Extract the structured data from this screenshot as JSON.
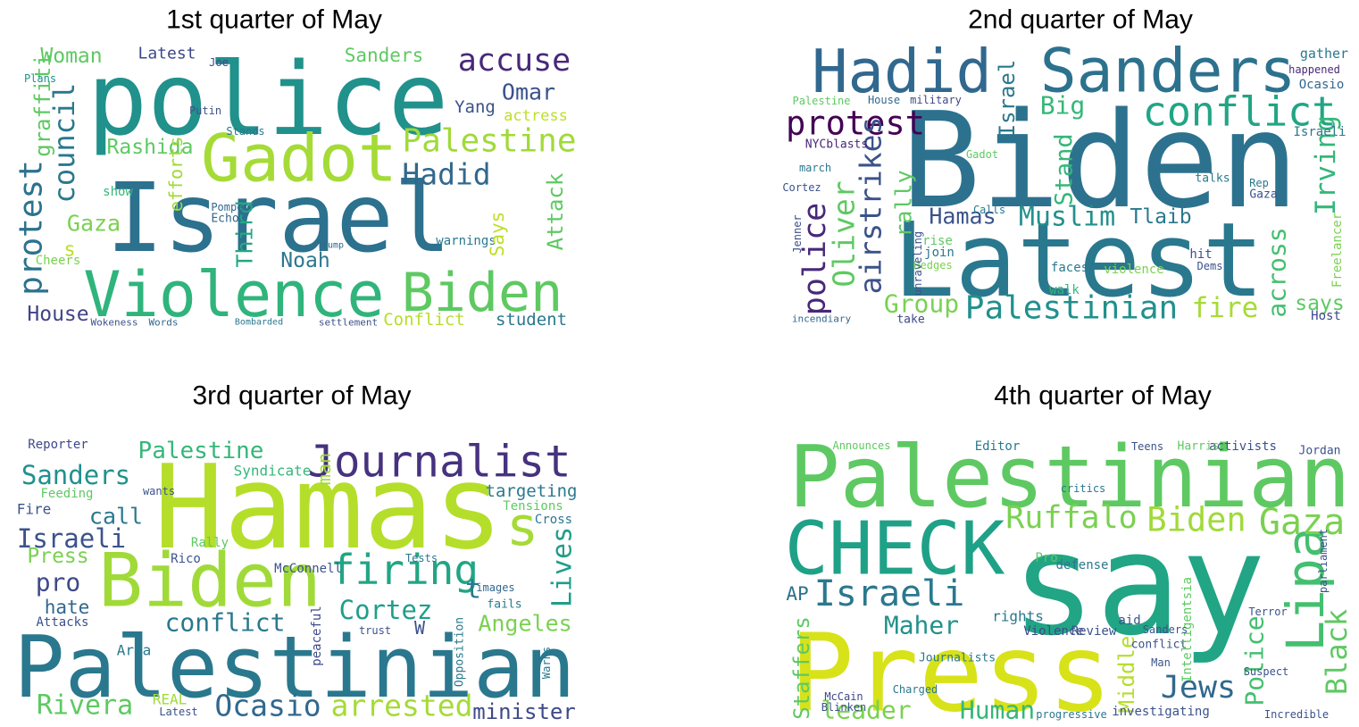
{
  "chart_data": [
    {
      "type": "wordcloud",
      "title": "1st quarter of May",
      "words": [
        "Israel",
        "police",
        "Gadot",
        "Violence",
        "Biden",
        "Palestine",
        "accuse",
        "Omar",
        "Hadid",
        "council",
        "protest",
        "graffiti",
        "Woman",
        "Latest",
        "Sanders",
        "Rashida",
        "Gaza",
        "House",
        "Noah",
        "Yang",
        "actress",
        "student",
        "Conflict",
        "warnings",
        "Attack",
        "Says",
        "efforts",
        "Third",
        "Cheers",
        "show",
        "Echo",
        "Putin",
        "Pompeo",
        "Joe",
        "Stands",
        "Wokeness",
        "Words",
        "Bombarded",
        "settlement",
        "Trump",
        "Plans",
        "s"
      ],
      "weights": [
        107,
        112,
        73,
        70,
        60,
        36,
        35,
        25,
        33,
        32,
        36,
        24,
        23,
        18,
        21,
        23,
        25,
        23,
        23,
        19,
        17,
        19,
        19,
        14,
        24,
        21,
        20,
        25,
        14,
        14,
        13,
        12,
        12,
        12,
        12,
        11,
        11,
        10,
        11,
        10,
        12,
        22
      ],
      "colors": [
        "#2c718e",
        "#21918c",
        "#a5db36",
        "#2fb47c",
        "#5ec962",
        "#a0da39",
        "#482878",
        "#3b528b",
        "#31688e",
        "#2a788e",
        "#2c728e",
        "#5ec962",
        "#5ec962",
        "#3e4989",
        "#5ec962",
        "#5ec962",
        "#7ad151",
        "#414487",
        "#2a788e",
        "#3b528b",
        "#bddf26",
        "#2a788e",
        "#b5de2b",
        "#2a788e",
        "#5ec962",
        "#bddf26",
        "#a0da39",
        "#22a884",
        "#7ad151",
        "#35b779",
        "#31688e",
        "#3b528b",
        "#31688e",
        "#3e4989",
        "#2a788e",
        "#3b528b",
        "#31688e",
        "#2a788e",
        "#3b528b",
        "#31688e",
        "#21918c",
        "#bddf26"
      ]
    },
    {
      "type": "wordcloud",
      "title": "2nd quarter of May",
      "words": [
        "Biden",
        "Latest",
        "Hadid",
        "Sanders",
        "conflict",
        "protest",
        "Israel",
        "Big",
        "Irving",
        "airstrikes",
        "police",
        "Oliver",
        "rally",
        "Hamas",
        "Muslim",
        "Tlaib",
        "Group",
        "Palestinian",
        "fire",
        "across",
        "says",
        "Stand",
        "gather",
        "happened",
        "Ocasio",
        "Israeli",
        "Gaza",
        "talks",
        "Rep",
        "Freelancer",
        "Host",
        "violence",
        "faces",
        "walk",
        "hit",
        "Dems",
        "join",
        "rise",
        "Hedges",
        "unraveling",
        "take",
        "Cortez",
        "march",
        "NYCblasts",
        "Palestine",
        "House",
        "military",
        "Gadot",
        "Calls",
        "incendiary",
        "Jenner"
      ],
      "weights": [
        148,
        115,
        67,
        68,
        45,
        37,
        24,
        28,
        31,
        33,
        35,
        33,
        25,
        25,
        30,
        23,
        28,
        36,
        31,
        28,
        23,
        27,
        15,
        12,
        14,
        14,
        13,
        13,
        12,
        14,
        14,
        14,
        14,
        14,
        14,
        12,
        14,
        14,
        12,
        12,
        13,
        12,
        12,
        13,
        12,
        12,
        12,
        12,
        12,
        11,
        12
      ],
      "colors": [
        "#2c728e",
        "#2a788e",
        "#31688e",
        "#2c728e",
        "#21a585",
        "#440154",
        "#2a788e",
        "#35b779",
        "#35b779",
        "#3b528b",
        "#482878",
        "#5ec962",
        "#5ec962",
        "#3b528b",
        "#21908d",
        "#2a788e",
        "#7ad151",
        "#21908d",
        "#a5db36",
        "#44bf70",
        "#5ec962",
        "#35b779",
        "#2a788e",
        "#482878",
        "#31688e",
        "#2a788e",
        "#3b528b",
        "#2a788e",
        "#2a788e",
        "#7ad151",
        "#3e4989",
        "#7ad151",
        "#2a788e",
        "#35b779",
        "#3b528b",
        "#3b528b",
        "#2a788e",
        "#5ec962",
        "#7ad151",
        "#3b528b",
        "#3e4989",
        "#3b528b",
        "#2a788e",
        "#482878",
        "#5ec962",
        "#31688e",
        "#3e4989",
        "#5ec962",
        "#2a788e",
        "#31688e",
        "#3b528b"
      ]
    },
    {
      "type": "wordcloud",
      "title": "3rd quarter of May",
      "words": [
        "Hamas",
        "s",
        "Biden",
        "Palestinian",
        "Journalist",
        "Palestine",
        "Sanders",
        "call",
        "Israeli",
        "firing",
        "Cortez",
        "conflict",
        "arrested",
        "Ocasio",
        "Rivera",
        "minister",
        "Angeles",
        "Lives",
        "targeting",
        "man",
        "Press",
        "pro",
        "hate",
        "Fire",
        "Reporter",
        "Feeding",
        "Syndicate",
        "Tensions",
        "Cross",
        "Rico",
        "McConnell",
        "Tests",
        "Rally",
        "Area",
        "images",
        "fails",
        "W",
        "t",
        "trust",
        "peaceful",
        "Opposition",
        "Warns",
        "REAL",
        "Latest",
        "Attacks",
        "wants"
      ],
      "weights": [
        130,
        60,
        83,
        95,
        49,
        26,
        29,
        25,
        29,
        46,
        29,
        28,
        33,
        33,
        30,
        24,
        25,
        30,
        19,
        20,
        23,
        28,
        21,
        16,
        14,
        14,
        16,
        14,
        14,
        14,
        14,
        12,
        14,
        16,
        12,
        13,
        20,
        30,
        12,
        14,
        13,
        12,
        16,
        12,
        14,
        12
      ],
      "colors": [
        "#b5de2b",
        "#a5db36",
        "#a0da39",
        "#2a788e",
        "#46327e",
        "#35b779",
        "#21918c",
        "#2a788e",
        "#3b528b",
        "#21a585",
        "#1f9e89",
        "#2a788e",
        "#a5db36",
        "#31688e",
        "#5ec962",
        "#3e4989",
        "#7ad151",
        "#1f9e89",
        "#2a788e",
        "#a0da39",
        "#7ad151",
        "#3e4989",
        "#31688e",
        "#3b528b",
        "#3e4989",
        "#5ec962",
        "#35b779",
        "#5ec962",
        "#2a788e",
        "#3b528b",
        "#3b528b",
        "#2a788e",
        "#5ec962",
        "#2a788e",
        "#31688e",
        "#2a788e",
        "#3b528b",
        "#2a788e",
        "#3b528b",
        "#3e4989",
        "#2a788e",
        "#2a788e",
        "#a0da39",
        "#3b528b",
        "#3b528b",
        "#3b528b"
      ]
    },
    {
      "type": "wordcloud",
      "title": "4th quarter of May",
      "words": [
        "Palestinian",
        "say",
        "Press",
        "CHECK",
        "Lipa",
        "Israeli",
        "Ruffalo",
        "Biden",
        "Gaza",
        "Jews",
        "Black",
        "Police",
        "Middle",
        "Staffers",
        "Maher",
        "Human",
        "leader",
        "AP",
        "Editor",
        "activists",
        "Harris",
        "Teens",
        "Jordan",
        "Announces",
        "critics",
        "rights",
        "Pro",
        "defense",
        "conflict",
        "Intelligentsia",
        "McCain",
        "Blinken",
        "Charged",
        "Journalists",
        "Violence",
        "Review",
        "investigating",
        "progressive",
        "parliament",
        "Sanders",
        "Man",
        "Suspect",
        "Incredible",
        "aid",
        "Terror"
      ],
      "weights": [
        95,
        158,
        120,
        82,
        58,
        40,
        35,
        37,
        40,
        35,
        32,
        28,
        24,
        24,
        28,
        28,
        28,
        21,
        14,
        14,
        13,
        12,
        13,
        12,
        12,
        16,
        14,
        14,
        13,
        14,
        12,
        12,
        12,
        13,
        14,
        14,
        14,
        12,
        12,
        12,
        12,
        12,
        12,
        14,
        12
      ],
      "colors": [
        "#5ec962",
        "#21a585",
        "#d8e219",
        "#1fa187",
        "#44bf70",
        "#2a788e",
        "#7ad151",
        "#a0da39",
        "#7ad151",
        "#31688e",
        "#5ec962",
        "#44bf70",
        "#b5de2b",
        "#5ec962",
        "#21918c",
        "#35b779",
        "#7ad151",
        "#2c728e",
        "#2a788e",
        "#3b528b",
        "#5ec962",
        "#3b528b",
        "#3b528b",
        "#5ec962",
        "#2a788e",
        "#2a788e",
        "#5ec962",
        "#2a788e",
        "#3b528b",
        "#5ec962",
        "#3e4989",
        "#3b528b",
        "#2a788e",
        "#2a788e",
        "#3e4989",
        "#3b528b",
        "#3b528b",
        "#2a788e",
        "#3b528b",
        "#3b528b",
        "#3b528b",
        "#3b528b",
        "#3b528b",
        "#3b528b",
        "#3b528b"
      ]
    }
  ]
}
